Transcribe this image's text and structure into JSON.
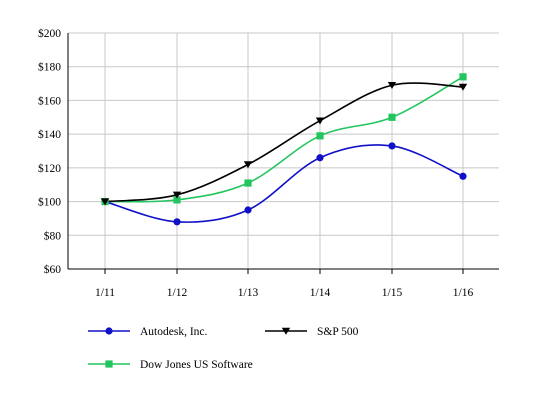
{
  "chart_data": {
    "type": "line",
    "categories": [
      "1/11",
      "1/12",
      "1/13",
      "1/14",
      "1/15",
      "1/16"
    ],
    "ylim": [
      60,
      200
    ],
    "yticks": [
      60,
      80,
      100,
      120,
      140,
      160,
      180,
      200
    ],
    "ytick_labels": [
      "$60",
      "$80",
      "$100",
      "$120",
      "$140",
      "$160",
      "$180",
      "$200"
    ],
    "grid": true,
    "legend_position": "bottom",
    "series": [
      {
        "name": "Autodesk, Inc.",
        "values": [
          100,
          88,
          95,
          126,
          133,
          115
        ],
        "color": "#1010c8",
        "marker": "circle"
      },
      {
        "name": "S&P 500",
        "values": [
          100,
          104,
          122,
          148,
          169,
          168
        ],
        "color": "#000000",
        "marker": "triangle-down"
      },
      {
        "name": "Dow Jones US Software",
        "values": [
          100,
          101,
          111,
          139,
          150,
          174
        ],
        "color": "#22c55e",
        "marker": "square"
      }
    ]
  }
}
